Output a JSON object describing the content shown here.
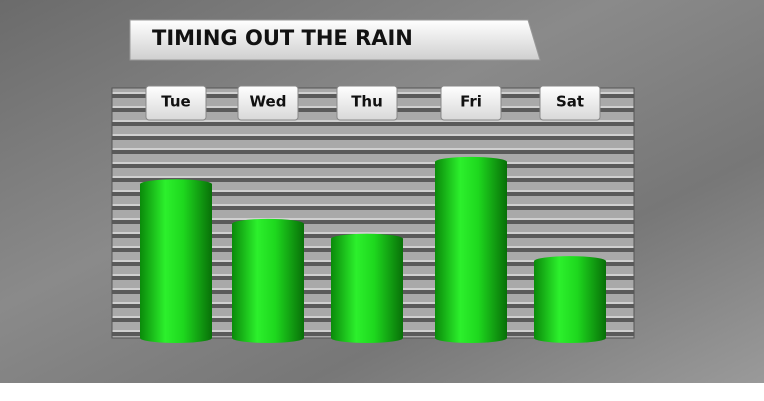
{
  "chart_data": {
    "type": "bar",
    "title": "TIMING OUT THE RAIN",
    "categories": [
      "Tue",
      "Wed",
      "Thu",
      "Fri",
      "Sat"
    ],
    "values": [
      62,
      46,
      40,
      71,
      31
    ],
    "color": "#1fe01f",
    "ylim": [
      0,
      100
    ]
  }
}
